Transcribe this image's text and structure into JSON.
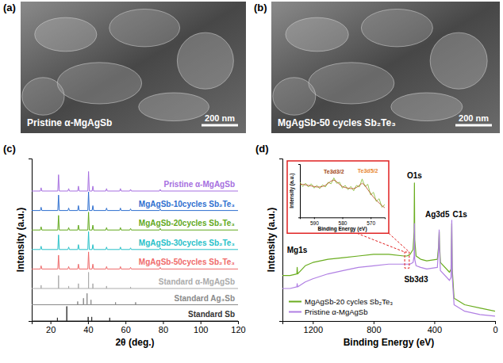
{
  "images": [
    {
      "label": "(a)",
      "caption": "Pristine α-MgAgSb",
      "scale_bar": "200 nm"
    },
    {
      "label": "(b)",
      "caption": "MgAgSb-50 cycles Sb₂Te₃",
      "scale_bar": "200 nm"
    }
  ],
  "chart_data": [
    {
      "label": "(c)",
      "type": "line",
      "x_label": "2θ (deg.)",
      "y_label": "Intensity (a.u.)",
      "xlim": [
        10,
        120
      ],
      "xticks": [
        20,
        40,
        60,
        80,
        100,
        120
      ],
      "ylim": [
        0,
        100
      ],
      "tick_labels": "x",
      "series": [
        {
          "name": "Pristine α-MgAgSb",
          "color": "#a66fe0",
          "x": [
            10,
            14.6,
            15,
            15.4,
            23.9,
            24.3,
            24.7,
            29.3,
            29.7,
            30.1,
            34.5,
            34.9,
            35.3,
            39.9,
            40.3,
            40.7,
            42.2,
            42.6,
            43,
            49.5,
            49.9,
            50.3,
            56.9,
            57.3,
            57.7,
            62.3,
            62.7,
            63.1,
            78.1,
            78.5,
            78.9,
            120
          ],
          "values": [
            80,
            80,
            82,
            80,
            80,
            90,
            80,
            80,
            81.5,
            80,
            80,
            83,
            80,
            80,
            92,
            80,
            80,
            83,
            80,
            80,
            81.5,
            80,
            80,
            81.5,
            80,
            80,
            81,
            80,
            80,
            81,
            80,
            80
          ]
        },
        {
          "name": "MgAgSb-10cycles Sb₂Te₃",
          "color": "#2e6fd0",
          "x": [
            10,
            14.6,
            15,
            15.4,
            23.9,
            24.3,
            24.7,
            29.3,
            29.7,
            30.1,
            34.5,
            34.9,
            35.3,
            39.9,
            40.3,
            40.7,
            42.2,
            42.6,
            43,
            49.5,
            49.9,
            50.3,
            56.9,
            57.3,
            57.7,
            62.3,
            62.7,
            63.1,
            78.1,
            78.5,
            78.9,
            120
          ],
          "values": [
            68,
            68,
            70,
            68,
            68,
            77.5,
            68,
            68,
            69.5,
            68,
            68,
            71,
            68,
            68,
            79.5,
            68,
            68,
            71,
            68,
            68,
            69.5,
            68,
            68,
            69.5,
            68,
            68,
            69,
            68,
            68,
            69,
            68,
            68
          ]
        },
        {
          "name": "MgAgSb-20cycles Sb₂Te₃",
          "color": "#62a91c",
          "x": [
            10,
            14.6,
            15,
            15.4,
            23.9,
            24.3,
            24.7,
            29.3,
            29.7,
            30.1,
            34.5,
            34.9,
            35.3,
            39.9,
            40.3,
            40.7,
            42.2,
            42.6,
            43,
            49.5,
            49.9,
            50.3,
            56.9,
            57.3,
            57.7,
            62.3,
            62.7,
            63.1,
            78.1,
            78.5,
            78.9,
            120
          ],
          "values": [
            56,
            56,
            58,
            56,
            56,
            65,
            56,
            56,
            57.5,
            56,
            56,
            59,
            56,
            56,
            67,
            56,
            56,
            59,
            56,
            56,
            57.5,
            56,
            56,
            57.5,
            56,
            56,
            57,
            56,
            56,
            57,
            56,
            56
          ]
        },
        {
          "name": "MgAgSb-30cycles Sb₂Te₃",
          "color": "#27c1c9",
          "x": [
            10,
            14.6,
            15,
            15.4,
            23.9,
            24.3,
            24.7,
            29.3,
            29.7,
            30.1,
            34.5,
            34.9,
            35.3,
            39.9,
            40.3,
            40.7,
            42.2,
            42.6,
            43,
            49.5,
            49.9,
            50.3,
            56.9,
            57.3,
            57.7,
            62.3,
            62.7,
            63.1,
            78.1,
            78.5,
            78.9,
            120
          ],
          "values": [
            44,
            44,
            46,
            44,
            44,
            53,
            44,
            44,
            45.5,
            44,
            44,
            47,
            44,
            44,
            55,
            44,
            44,
            47,
            44,
            44,
            45.5,
            44,
            44,
            45.5,
            44,
            44,
            45,
            44,
            44,
            45,
            44,
            44
          ]
        },
        {
          "name": "MgAgSb-50cycles Sb₂Te₃",
          "color": "#ef6b6b",
          "x": [
            10,
            14.6,
            15,
            15.4,
            23.9,
            24.3,
            24.7,
            29.3,
            29.7,
            30.1,
            34.5,
            34.9,
            35.3,
            39.9,
            40.3,
            40.7,
            42.2,
            42.6,
            43,
            49.5,
            49.9,
            50.3,
            56.9,
            57.3,
            57.7,
            62.3,
            62.7,
            63.1,
            78.1,
            78.5,
            78.9,
            120
          ],
          "values": [
            32,
            32,
            34,
            32,
            32,
            40.5,
            32,
            32,
            33.5,
            32,
            32,
            35,
            32,
            32,
            42.5,
            32,
            32,
            35,
            32,
            32,
            33.5,
            32,
            32,
            33.5,
            32,
            32,
            33,
            32,
            32,
            33,
            32,
            32
          ]
        },
        {
          "name": "Standard α-MgAgSb",
          "color": "#ababab",
          "x": [
            10,
            15,
            15,
            15,
            24.3,
            24.3,
            24.3,
            29.7,
            29.7,
            29.7,
            34.9,
            34.9,
            34.9,
            40.3,
            40.3,
            40.3,
            42.6,
            42.6,
            42.6,
            49.9,
            49.9,
            49.9,
            62.7,
            62.7,
            62.7,
            120
          ],
          "values": [
            20,
            20,
            22,
            20,
            20,
            28,
            20,
            20,
            21.5,
            20,
            20,
            23,
            20,
            20,
            30,
            20,
            20,
            23,
            20,
            20,
            21.5,
            20,
            20,
            21,
            20,
            20
          ]
        },
        {
          "name": "Standard Ag₃Sb",
          "color": "#8a8a8a",
          "x": [
            10,
            34.5,
            34.5,
            34.5,
            37.6,
            37.6,
            37.6,
            39.5,
            39.5,
            39.5,
            41.6,
            41.6,
            41.6,
            54.7,
            54.7,
            54.7,
            65.4,
            65.4,
            65.4,
            120
          ],
          "values": [
            10,
            10,
            12,
            10,
            10,
            14,
            10,
            10,
            17,
            10,
            10,
            13,
            10,
            10,
            11.5,
            10,
            10,
            11.5,
            10,
            10
          ]
        },
        {
          "name": "Standard Sb",
          "color": "#333333",
          "x": [
            10,
            23.7,
            23.7,
            23.7,
            28.7,
            28.7,
            28.7,
            40.1,
            40.1,
            40.1,
            42,
            42,
            42,
            51.6,
            51.6,
            51.6,
            120
          ],
          "values": [
            0,
            0,
            2,
            0,
            0,
            9,
            0,
            0,
            2.5,
            0,
            0,
            2.5,
            0,
            0,
            2,
            0,
            0
          ]
        }
      ]
    },
    {
      "label": "(d)",
      "type": "line",
      "x_label": "Binding Energy (eV)",
      "y_label": "Intensity (a.u.)",
      "xlim": [
        1400,
        0
      ],
      "xticks": [
        1200,
        800,
        400,
        0
      ],
      "ylim": [
        0,
        100
      ],
      "tick_labels": "x",
      "legend": "lower left",
      "series": [
        {
          "name": "MgAgSb-20 cycles Sb₂Te₃",
          "color": "#6aad1f",
          "x": [
            1400,
            1350,
            1305,
            1303,
            1300,
            1250,
            1200,
            1100,
            1000,
            900,
            800,
            700,
            600,
            580,
            560,
            540,
            533,
            531,
            529,
            520,
            490,
            450,
            380,
            372,
            368,
            366,
            360,
            300,
            290,
            285,
            282,
            270,
            200,
            100,
            0
          ],
          "values": [
            28,
            28,
            29,
            33,
            29,
            34,
            36,
            38,
            39,
            40,
            41,
            41,
            40,
            40,
            41,
            44,
            55,
            85,
            50,
            40,
            38,
            37,
            38,
            46,
            55,
            48,
            36,
            30,
            32,
            60,
            32,
            14,
            10,
            8,
            6
          ]
        },
        {
          "name": "Pristine α-MgAgSb",
          "color": "#b07fe3",
          "x": [
            1400,
            1350,
            1305,
            1303,
            1300,
            1250,
            1200,
            1100,
            1000,
            900,
            800,
            700,
            600,
            580,
            560,
            540,
            533,
            531,
            529,
            520,
            490,
            450,
            380,
            372,
            368,
            366,
            360,
            300,
            290,
            285,
            282,
            270,
            200,
            100,
            0
          ],
          "values": [
            20,
            20,
            21,
            23,
            21,
            24,
            26,
            29,
            31,
            33,
            34,
            35,
            35,
            35,
            35,
            36,
            40,
            60,
            38,
            34,
            33,
            32,
            33,
            44,
            56,
            45,
            31,
            25,
            27,
            62,
            27,
            10,
            6,
            4,
            3
          ]
        }
      ],
      "annotations": [
        {
          "text": "Mg1s",
          "x": 1303,
          "y": 42
        },
        {
          "text": "O1s",
          "x": 531,
          "y": 88
        },
        {
          "text": "Ag3d5",
          "x": 380,
          "y": 64
        },
        {
          "text": "Sb3d3",
          "x": 520,
          "y": 24
        },
        {
          "text": "C1s",
          "x": 232,
          "y": 64
        }
      ],
      "inset": {
        "type": "line",
        "x_label": "Binding Energy (eV)",
        "y_label": "Intensity (a.u.)",
        "xlim": [
          595,
          565
        ],
        "xticks": [
          590,
          580,
          570
        ],
        "ylim": [
          0,
          100
        ],
        "tick_labels": "x",
        "series": [
          {
            "color": "#7dbb2a",
            "x": [
              595,
              594,
              593,
              592,
              591,
              590,
              589,
              588,
              587,
              586,
              585,
              584,
              583,
              582,
              581,
              580,
              579,
              578,
              577,
              576,
              575,
              574,
              573,
              572,
              571,
              570,
              569,
              568,
              567,
              566,
              565
            ],
            "values": [
              66,
              58,
              64,
              57,
              63,
              55,
              60,
              54,
              61,
              57,
              66,
              63,
              74,
              64,
              66,
              55,
              60,
              52,
              58,
              50,
              60,
              57,
              72,
              58,
              62,
              42,
              47,
              30,
              35,
              19,
              24
            ]
          },
          {
            "color": "#b5451b",
            "x": [
              595,
              594,
              593,
              592,
              591,
              590,
              589,
              588,
              587,
              586,
              585,
              584,
              583,
              582,
              581,
              580,
              579,
              578,
              577,
              576,
              575,
              574,
              573,
              572,
              571,
              570,
              569,
              568,
              567,
              566,
              565
            ],
            "values": [
              62,
              62,
              61,
              60,
              59,
              58,
              57,
              57,
              58,
              60,
              64,
              68,
              70,
              67,
              62,
              58,
              56,
              55,
              54,
              54,
              56,
              60,
              64,
              60,
              52,
              45,
              38,
              32,
              27,
              22,
              18
            ]
          }
        ],
        "annotations": [
          {
            "text": "Te3d3/2",
            "x": 583,
            "y": 82,
            "color": "#a0420f"
          },
          {
            "text": "Te3d5/2",
            "x": 571,
            "y": 84,
            "color": "#e8862e"
          }
        ]
      }
    }
  ]
}
